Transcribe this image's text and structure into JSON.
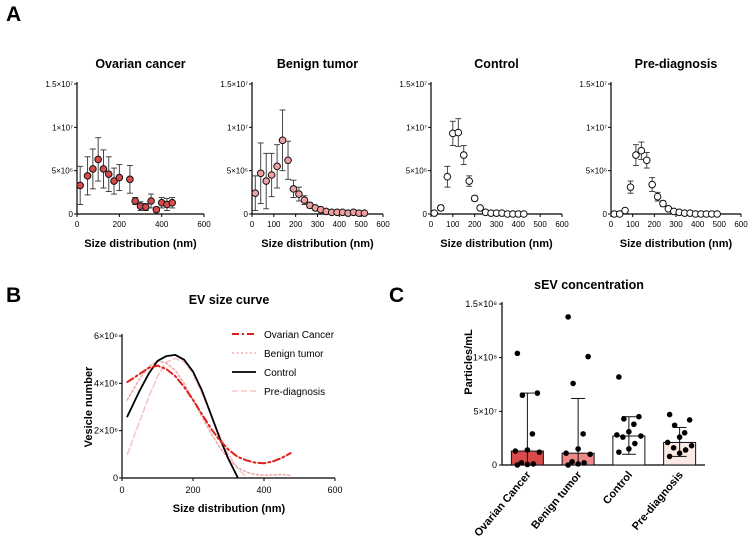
{
  "panel_letters": {
    "a": "A",
    "b": "B",
    "c": "C"
  },
  "chart_data": [
    {
      "id": "a1",
      "type": "scatter",
      "title": "Ovarian cancer",
      "xlabel": "Size distribution (nm)",
      "ylabel": "",
      "xlim": [
        0,
        600
      ],
      "ylim": [
        0,
        15000000
      ],
      "xticks": [
        0,
        200,
        400,
        600
      ],
      "yticks": [
        {
          "v": 0,
          "label": "0"
        },
        {
          "v": 5000000,
          "label": "5×10⁶"
        },
        {
          "v": 10000000,
          "label": "1×10⁷"
        },
        {
          "v": 15000000,
          "label": "1.5×10⁷"
        }
      ],
      "marker_color": "#d94a4a",
      "x": [
        15,
        50,
        75,
        100,
        125,
        150,
        175,
        200,
        250,
        275,
        300,
        325,
        350,
        375,
        400,
        425,
        450
      ],
      "y": [
        3300000,
        4400000,
        5200000,
        6300000,
        5200000,
        4600000,
        3800000,
        4200000,
        4000000,
        1500000,
        900000,
        800000,
        1500000,
        500000,
        1300000,
        1100000,
        1300000
      ],
      "err": [
        2200000,
        2200000,
        2300000,
        2500000,
        2200000,
        2000000,
        1500000,
        1500000,
        1600000,
        400000,
        500000,
        400000,
        800000,
        300000,
        600000,
        700000,
        600000
      ]
    },
    {
      "id": "a2",
      "type": "scatter",
      "title": "Benign tumor",
      "xlabel": "Size distribution (nm)",
      "ylabel": "",
      "xlim": [
        0,
        600
      ],
      "ylim": [
        0,
        15000000
      ],
      "xticks": [
        0,
        100,
        200,
        300,
        400,
        500,
        600
      ],
      "yticks": [
        {
          "v": 0,
          "label": "0"
        },
        {
          "v": 5000000,
          "label": "5×10⁶"
        },
        {
          "v": 10000000,
          "label": "1×10⁷"
        },
        {
          "v": 15000000,
          "label": "1.5×10⁷"
        }
      ],
      "marker_color": "#f0a0a0",
      "x": [
        15,
        40,
        65,
        90,
        115,
        140,
        165,
        190,
        215,
        240,
        265,
        290,
        315,
        340,
        365,
        390,
        415,
        440,
        465,
        490,
        515
      ],
      "y": [
        2400000,
        4700000,
        3800000,
        4500000,
        5500000,
        8500000,
        6200000,
        2900000,
        2300000,
        1600000,
        1000000,
        700000,
        500000,
        300000,
        200000,
        200000,
        200000,
        100000,
        200000,
        100000,
        100000
      ],
      "err": [
        2000000,
        3500000,
        3200000,
        2500000,
        2500000,
        3500000,
        2200000,
        1000000,
        800000,
        500000,
        300000,
        200000,
        150000,
        150000,
        100000,
        100000,
        100000,
        100000,
        100000,
        50000,
        50000
      ]
    },
    {
      "id": "a3",
      "type": "scatter",
      "title": "Control",
      "xlabel": "Size distribution (nm)",
      "ylabel": "",
      "xlim": [
        0,
        600
      ],
      "ylim": [
        0,
        15000000
      ],
      "xticks": [
        0,
        100,
        200,
        300,
        400,
        500,
        600
      ],
      "yticks": [
        {
          "v": 0,
          "label": "0"
        },
        {
          "v": 5000000,
          "label": "5×10⁶"
        },
        {
          "v": 10000000,
          "label": "1×10⁷"
        },
        {
          "v": 15000000,
          "label": "1.5×10⁷"
        }
      ],
      "marker_color": "#ffffff",
      "x": [
        15,
        45,
        75,
        100,
        125,
        150,
        175,
        200,
        225,
        250,
        275,
        300,
        325,
        350,
        375,
        400,
        425
      ],
      "y": [
        100000,
        700000,
        4300000,
        9300000,
        9400000,
        6800000,
        3800000,
        1800000,
        700000,
        200000,
        100000,
        100000,
        100000,
        0,
        0,
        0,
        0
      ],
      "err": [
        100000,
        300000,
        1200000,
        1400000,
        1600000,
        1100000,
        600000,
        300000,
        200000,
        100000,
        50000,
        50000,
        50000,
        0,
        0,
        0,
        0
      ]
    },
    {
      "id": "a4",
      "type": "scatter",
      "title": "Pre-diagnosis",
      "xlabel": "Size distribution (nm)",
      "ylabel": "",
      "xlim": [
        0,
        600
      ],
      "ylim": [
        0,
        15000000
      ],
      "xticks": [
        0,
        100,
        200,
        300,
        400,
        500,
        600
      ],
      "yticks": [
        {
          "v": 0,
          "label": "0"
        },
        {
          "v": 5000000,
          "label": "5×10⁶"
        },
        {
          "v": 10000000,
          "label": "1×10⁷"
        },
        {
          "v": 15000000,
          "label": "1.5×10⁷"
        }
      ],
      "marker_color": "#ffffff",
      "x": [
        15,
        40,
        65,
        90,
        115,
        140,
        165,
        190,
        215,
        240,
        265,
        290,
        315,
        340,
        365,
        390,
        415,
        440,
        465,
        490
      ],
      "y": [
        0,
        0,
        400000,
        3100000,
        6800000,
        7300000,
        6200000,
        3400000,
        2000000,
        1200000,
        600000,
        300000,
        200000,
        100000,
        100000,
        0,
        0,
        0,
        0,
        0
      ],
      "err": [
        0,
        0,
        200000,
        700000,
        1200000,
        1000000,
        900000,
        800000,
        500000,
        300000,
        200000,
        100000,
        100000,
        50000,
        50000,
        0,
        0,
        0,
        0,
        0
      ]
    },
    {
      "id": "b",
      "type": "line",
      "title": "EV size curve",
      "xlabel": "Size distribution (nm)",
      "ylabel": "Vesicle number",
      "xlim": [
        0,
        600
      ],
      "ylim": [
        0,
        6000000
      ],
      "xticks": [
        0,
        200,
        400,
        600
      ],
      "yticks": [
        {
          "v": 0,
          "label": "0"
        },
        {
          "v": 2000000,
          "label": "2×10⁶"
        },
        {
          "v": 4000000,
          "label": "4×10⁶"
        },
        {
          "v": 6000000,
          "label": "6×10⁶"
        }
      ],
      "x": [
        15,
        50,
        75,
        100,
        125,
        150,
        175,
        200,
        225,
        250,
        275,
        300,
        325,
        350,
        375,
        400,
        425,
        450,
        475
      ],
      "series": [
        {
          "name": "Ovarian Cancer",
          "color": "#e0201b",
          "dash": "7,3,2,3",
          "width": 2,
          "values": [
            4050000,
            4400000,
            4650000,
            4750000,
            4600000,
            4300000,
            3850000,
            3300000,
            2700000,
            2100000,
            1600000,
            1200000,
            900000,
            750000,
            650000,
            620000,
            700000,
            850000,
            1050000
          ]
        },
        {
          "name": "Benign tumor",
          "color": "#f2aaaa",
          "dash": "2,2.5",
          "width": 1.6,
          "values": [
            3300000,
            4200000,
            4700000,
            4950000,
            4850000,
            4550000,
            4000000,
            3300000,
            2600000,
            1900000,
            1300000,
            800000,
            450000,
            250000,
            150000,
            120000,
            130000,
            150000,
            100000
          ]
        },
        {
          "name": "Control",
          "color": "#000000",
          "dash": "",
          "width": 1.8,
          "values": [
            2600000,
            3700000,
            4400000,
            4950000,
            5150000,
            5200000,
            5000000,
            4500000,
            3700000,
            2700000,
            1700000,
            800000,
            50000,
            null,
            null,
            null,
            null,
            null,
            null
          ]
        },
        {
          "name": "Pre-diagnosis",
          "color": "#f7c6c6",
          "dash": "6,3",
          "width": 1.6,
          "values": [
            1000000,
            2400000,
            3400000,
            4300000,
            4900000,
            5050000,
            4900000,
            4400000,
            3600000,
            2700000,
            1800000,
            1000000,
            400000,
            50000,
            null,
            null,
            null,
            null,
            null
          ]
        }
      ]
    },
    {
      "id": "c",
      "type": "bar",
      "title": "sEV concentration",
      "xlabel": "",
      "ylabel": "Particles/mL",
      "ylim": [
        0,
        150000000
      ],
      "yticks": [
        {
          "v": 0,
          "label": "0"
        },
        {
          "v": 50000000,
          "label": "5×10⁷"
        },
        {
          "v": 100000000,
          "label": "1×10⁸"
        },
        {
          "v": 150000000,
          "label": "1.5×10⁸"
        }
      ],
      "categories": [
        "Ovarian Cancer",
        "Benign tumor",
        "Control",
        "Pre-diagnosis"
      ],
      "colors": [
        "#d94a4a",
        "#f08a8a",
        "#ffffff",
        "#fbe9e4"
      ],
      "values": [
        13000000,
        11000000,
        27000000,
        21000000
      ],
      "err_low": [
        0,
        0,
        10000000,
        8000000
      ],
      "err_high": [
        67000000,
        62000000,
        45000000,
        35000000
      ],
      "points": [
        [
          104000000,
          67000000,
          65000000,
          29000000,
          14000000,
          13000000,
          12000000,
          2000000,
          1000000,
          500000,
          0
        ],
        [
          138000000,
          101000000,
          76000000,
          29000000,
          15000000,
          11000000,
          10000000,
          3000000,
          2000000,
          1000000,
          0
        ],
        [
          82000000,
          45000000,
          43000000,
          38000000,
          31000000,
          28000000,
          27000000,
          26000000,
          20000000,
          15000000,
          12000000
        ],
        [
          47000000,
          42000000,
          37000000,
          30000000,
          26000000,
          21000000,
          18000000,
          16000000,
          14000000,
          11000000,
          8000000
        ]
      ]
    }
  ]
}
